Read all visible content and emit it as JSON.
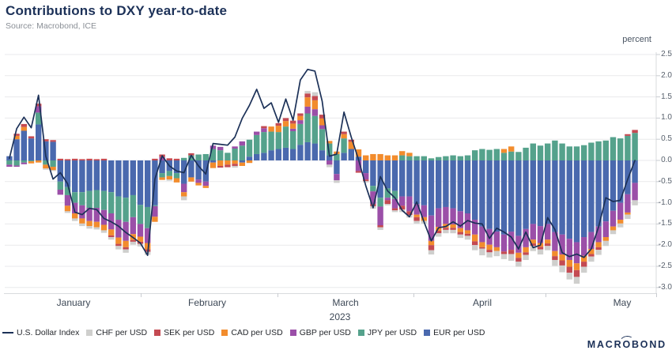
{
  "header": {
    "title": "Contributions to DXY year-to-date",
    "source": "Source: Macrobond, ICE"
  },
  "axes": {
    "y_unit_label": "percent",
    "y_ticks": [
      "2.5",
      "2.0",
      "1.5",
      "1.0",
      "0.5",
      "0.0",
      "-0.5",
      "-1.0",
      "-1.5",
      "-2.0",
      "-2.5",
      "-3.0"
    ],
    "x_month_labels": [
      "January",
      "February",
      "March",
      "April",
      "May"
    ],
    "year_label": "2023"
  },
  "legend": {
    "items": [
      {
        "label": "U.S. Dollar Index",
        "color": "#1c3158",
        "swatch": "line"
      },
      {
        "label": "CHF per USD",
        "color": "#cfcfcd",
        "swatch": "square"
      },
      {
        "label": "SEK per USD",
        "color": "#c44a52",
        "swatch": "square"
      },
      {
        "label": "CAD per USD",
        "color": "#f28c2d",
        "swatch": "square"
      },
      {
        "label": "GBP per USD",
        "color": "#9b4fa8",
        "swatch": "square"
      },
      {
        "label": "JPY per USD",
        "color": "#55a28c",
        "swatch": "square"
      },
      {
        "label": "EUR per USD",
        "color": "#4a69ae",
        "swatch": "square"
      }
    ]
  },
  "branding": {
    "logo_text": "MACROBOND"
  },
  "chart_data": {
    "type": "bar",
    "subtype": "stacked-daily-bars-with-line-overlay",
    "title": "Contributions to DXY year-to-date",
    "ylabel": "percent",
    "ylim": [
      -3.0,
      2.5
    ],
    "grid": "horizontal, every 0.5",
    "legend_position": "bottom",
    "x_axis": {
      "months": [
        "January",
        "February",
        "March",
        "April",
        "May"
      ],
      "year": "2023",
      "month_boundary_indices": [
        18.5,
        37,
        55.5,
        74
      ]
    },
    "stack_order_from_zero": [
      "EUR per USD",
      "JPY per USD",
      "GBP per USD",
      "CAD per USD",
      "SEK per USD",
      "CHF per USD"
    ],
    "series": [
      {
        "name": "EUR per USD",
        "color": "#4a69ae",
        "values": [
          0.1,
          0.5,
          0.7,
          0.52,
          0.85,
          0.45,
          0.44,
          -0.5,
          -0.63,
          -0.75,
          -0.75,
          -0.72,
          -0.7,
          -0.72,
          -0.75,
          -0.85,
          -0.88,
          -0.82,
          -1.05,
          -1.1,
          -1.06,
          -0.3,
          -0.25,
          -0.3,
          -0.55,
          -0.4,
          -0.45,
          -0.5,
          -0.05,
          0.0,
          0.0,
          0.0,
          -0.05,
          0.09,
          0.15,
          0.18,
          0.24,
          0.27,
          0.3,
          0.27,
          0.37,
          0.43,
          0.4,
          0.24,
          0.12,
          -0.32,
          0.18,
          0.27,
          0.09,
          -0.3,
          -0.6,
          -0.88,
          -0.66,
          -0.72,
          -0.85,
          -0.85,
          -1.03,
          -1.06,
          -1.3,
          -1.13,
          -1.1,
          -1.13,
          -1.2,
          -1.25,
          -1.4,
          -1.56,
          -1.62,
          -1.68,
          -1.75,
          -1.68,
          -1.78,
          -1.62,
          -1.5,
          -1.55,
          -1.5,
          -1.69,
          -1.75,
          -1.85,
          -1.93,
          -1.81,
          -1.69,
          -1.56,
          -1.44,
          -1.19,
          -1.0,
          -0.8,
          -0.53
        ]
      },
      {
        "name": "JPY per USD",
        "color": "#55a28c",
        "values": [
          -0.1,
          -0.12,
          -0.05,
          -0.02,
          0.28,
          -0.1,
          -0.15,
          -0.19,
          -0.19,
          -0.25,
          -0.31,
          -0.4,
          -0.42,
          -0.45,
          -0.5,
          -0.55,
          -0.57,
          -0.52,
          -0.45,
          -0.5,
          -0.02,
          -0.1,
          -0.12,
          -0.12,
          0.06,
          0.12,
          0.14,
          0.15,
          0.27,
          0.24,
          0.18,
          0.28,
          0.35,
          0.4,
          0.45,
          0.49,
          0.44,
          0.4,
          0.5,
          0.42,
          0.49,
          0.68,
          0.65,
          0.5,
          0.28,
          0.15,
          0.34,
          0.0,
          0.0,
          0.0,
          -0.13,
          -0.21,
          -0.22,
          -0.19,
          0.12,
          0.1,
          0.1,
          0.1,
          0.05,
          0.08,
          0.1,
          0.12,
          0.1,
          0.12,
          0.24,
          0.27,
          0.25,
          0.27,
          0.18,
          0.21,
          0.2,
          0.3,
          0.4,
          0.35,
          0.4,
          0.47,
          0.4,
          0.33,
          0.33,
          0.36,
          0.42,
          0.45,
          0.47,
          0.55,
          0.52,
          0.58,
          0.65
        ]
      },
      {
        "name": "GBP per USD",
        "color": "#9b4fa8",
        "values": [
          -0.05,
          -0.03,
          -0.04,
          0.0,
          0.15,
          0.0,
          0.0,
          -0.12,
          -0.25,
          -0.25,
          -0.31,
          -0.31,
          -0.33,
          -0.35,
          -0.38,
          -0.42,
          -0.45,
          -0.4,
          -0.3,
          -0.35,
          -0.25,
          0.08,
          0.0,
          0.0,
          -0.2,
          0.0,
          -0.08,
          -0.1,
          0.08,
          0.08,
          0.0,
          0.05,
          0.1,
          0.0,
          0.08,
          0.09,
          0.0,
          0.0,
          0.0,
          0.06,
          0.09,
          0.16,
          0.16,
          0.09,
          -0.1,
          -0.15,
          0.0,
          0.0,
          -0.25,
          -0.15,
          -0.3,
          -0.44,
          -0.06,
          -0.22,
          -0.22,
          -0.35,
          -0.25,
          -0.28,
          -0.6,
          -0.44,
          -0.4,
          -0.38,
          -0.4,
          -0.4,
          -0.35,
          -0.37,
          -0.37,
          -0.37,
          -0.4,
          -0.43,
          -0.4,
          -0.43,
          -0.37,
          -0.4,
          -0.37,
          -0.45,
          -0.47,
          -0.5,
          -0.5,
          -0.44,
          -0.4,
          -0.37,
          -0.37,
          -0.37,
          -0.4,
          -0.43,
          -0.41
        ]
      },
      {
        "name": "CAD per USD",
        "color": "#f28c2d",
        "values": [
          0.0,
          0.08,
          0.09,
          -0.05,
          -0.05,
          -0.09,
          -0.08,
          0.0,
          -0.13,
          -0.12,
          -0.12,
          -0.12,
          -0.13,
          -0.13,
          -0.14,
          -0.15,
          -0.15,
          -0.14,
          -0.12,
          -0.15,
          -0.12,
          -0.06,
          -0.08,
          -0.1,
          -0.1,
          -0.1,
          -0.06,
          -0.05,
          -0.13,
          -0.13,
          -0.1,
          -0.08,
          -0.08,
          -0.06,
          0.0,
          0.0,
          0.12,
          0.15,
          0.13,
          0.12,
          0.1,
          0.22,
          0.21,
          0.16,
          0.06,
          0.06,
          0.1,
          0.17,
          0.17,
          0.12,
          0.15,
          0.15,
          0.12,
          0.12,
          0.1,
          0.08,
          -0.06,
          -0.09,
          -0.1,
          -0.09,
          -0.09,
          -0.08,
          -0.09,
          -0.08,
          -0.16,
          -0.12,
          -0.12,
          -0.09,
          0.09,
          0.12,
          -0.12,
          -0.12,
          -0.09,
          -0.09,
          -0.09,
          -0.12,
          -0.14,
          -0.16,
          -0.16,
          -0.14,
          -0.12,
          -0.12,
          -0.09,
          -0.09,
          -0.09,
          -0.05,
          0.0
        ]
      },
      {
        "name": "SEK per USD",
        "color": "#c44a52",
        "values": [
          0.0,
          0.05,
          0.07,
          0.05,
          0.06,
          0.05,
          0.04,
          0.04,
          0.03,
          0.04,
          0.03,
          0.04,
          0.03,
          0.04,
          -0.04,
          -0.05,
          -0.05,
          -0.04,
          -0.05,
          -0.06,
          0.04,
          0.06,
          0.05,
          0.04,
          0.0,
          0.05,
          0.0,
          0.0,
          0.0,
          -0.04,
          -0.06,
          -0.05,
          0.0,
          0.0,
          0.0,
          0.05,
          0.0,
          0.06,
          0.07,
          0.07,
          0.06,
          0.09,
          0.1,
          0.09,
          0.0,
          0.0,
          0.06,
          0.05,
          -0.04,
          -0.04,
          -0.05,
          -0.05,
          -0.09,
          -0.05,
          -0.09,
          -0.09,
          -0.09,
          0.0,
          -0.12,
          -0.06,
          -0.05,
          -0.05,
          -0.06,
          -0.05,
          -0.09,
          -0.03,
          -0.06,
          0.0,
          -0.06,
          -0.1,
          -0.09,
          -0.06,
          -0.06,
          -0.06,
          -0.06,
          -0.09,
          -0.12,
          -0.14,
          -0.16,
          -0.12,
          -0.06,
          -0.06,
          0.0,
          0.0,
          0.0,
          0.04,
          0.07
        ]
      },
      {
        "name": "CHF per USD",
        "color": "#cfcfcd",
        "values": [
          0.0,
          0.0,
          0.0,
          0.0,
          0.0,
          -0.03,
          -0.02,
          0.0,
          -0.04,
          -0.06,
          -0.06,
          -0.06,
          -0.05,
          -0.06,
          -0.06,
          -0.08,
          -0.08,
          -0.07,
          -0.06,
          -0.07,
          0.0,
          0.0,
          -0.03,
          0.0,
          -0.09,
          0.0,
          0.0,
          0.0,
          0.0,
          0.0,
          0.0,
          -0.04,
          0.0,
          0.0,
          0.0,
          0.0,
          0.0,
          0.0,
          0.0,
          0.0,
          0.0,
          0.06,
          0.09,
          0.0,
          -0.06,
          -0.06,
          0.0,
          0.0,
          0.0,
          -0.03,
          -0.06,
          -0.06,
          -0.03,
          -0.04,
          -0.06,
          -0.06,
          -0.06,
          -0.06,
          -0.1,
          -0.08,
          -0.08,
          -0.08,
          -0.08,
          -0.09,
          -0.12,
          -0.16,
          -0.12,
          -0.12,
          -0.12,
          -0.16,
          -0.12,
          -0.12,
          -0.12,
          -0.12,
          -0.1,
          -0.14,
          -0.16,
          -0.16,
          -0.16,
          -0.14,
          -0.12,
          -0.12,
          -0.12,
          -0.09,
          -0.09,
          -0.1,
          -0.12
        ]
      }
    ],
    "line": {
      "name": "U.S. Dollar Index",
      "color": "#1c3158",
      "values": [
        0.05,
        0.75,
        1.02,
        0.77,
        1.54,
        0.1,
        -0.44,
        -0.29,
        -0.55,
        -1.22,
        -1.28,
        -1.13,
        -1.16,
        -1.37,
        -1.45,
        -1.55,
        -1.7,
        -1.82,
        -1.95,
        -2.24,
        -0.44,
        0.11,
        -0.13,
        -0.25,
        -0.29,
        0.12,
        -0.13,
        -0.32,
        0.4,
        0.38,
        0.36,
        0.55,
        0.99,
        1.3,
        1.68,
        1.23,
        1.36,
        0.9,
        1.45,
        0.95,
        1.9,
        2.15,
        2.11,
        1.4,
        0.1,
        0.15,
        1.14,
        0.55,
        0.02,
        -0.6,
        -1.12,
        -0.38,
        -0.72,
        -0.88,
        -1.18,
        -1.33,
        -0.98,
        -1.45,
        -1.9,
        -1.59,
        -1.56,
        -1.45,
        -1.55,
        -1.42,
        -1.48,
        -1.5,
        -1.84,
        -1.6,
        -1.69,
        -1.81,
        -2.09,
        -1.69,
        -2.06,
        -2.0,
        -1.35,
        -1.63,
        -2.18,
        -2.27,
        -2.21,
        -2.29,
        -2.09,
        -1.57,
        -0.88,
        -0.97,
        -0.94,
        -0.45,
        0.0
      ]
    }
  }
}
